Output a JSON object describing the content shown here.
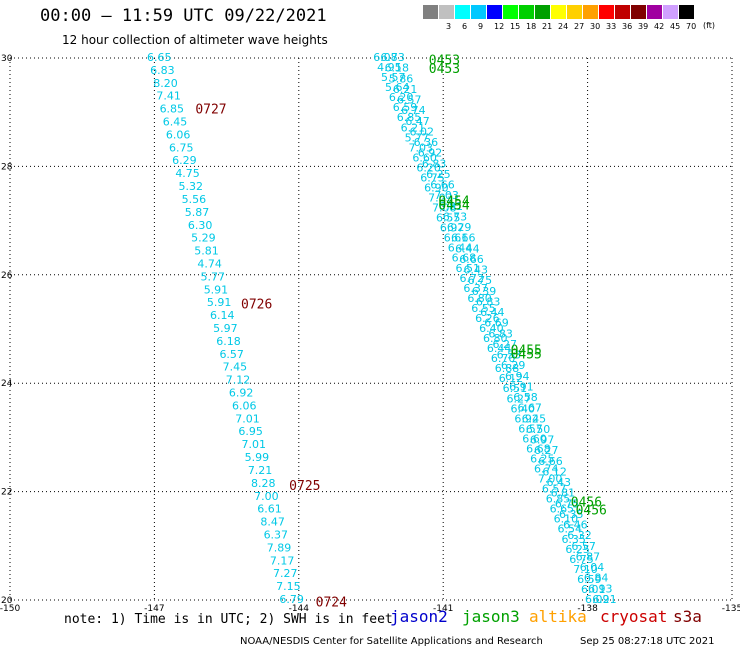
{
  "title": "00:00 – 11:59 UTC 09/22/2021",
  "subtitle": "12 hour collection of altimeter wave heights",
  "colorbar": {
    "unit": "(ft)",
    "stops": [
      {
        "label": "",
        "color": "#808080"
      },
      {
        "label": "3",
        "color": "#c0c0c0"
      },
      {
        "label": "6",
        "color": "#00ffff"
      },
      {
        "label": "9",
        "color": "#00c8ff"
      },
      {
        "label": "12",
        "color": "#0000ff"
      },
      {
        "label": "15",
        "color": "#00ff00"
      },
      {
        "label": "18",
        "color": "#00d000"
      },
      {
        "label": "21",
        "color": "#00a000"
      },
      {
        "label": "24",
        "color": "#ffff00"
      },
      {
        "label": "27",
        "color": "#ffd000"
      },
      {
        "label": "30",
        "color": "#ffa000"
      },
      {
        "label": "33",
        "color": "#ff0000"
      },
      {
        "label": "36",
        "color": "#c00000"
      },
      {
        "label": "39",
        "color": "#800000"
      },
      {
        "label": "42",
        "color": "#a000a0"
      },
      {
        "label": "45",
        "color": "#d0a0ff"
      },
      {
        "label": "70",
        "color": "#000000"
      }
    ]
  },
  "note": "note: 1) Time is in UTC; 2) SWH is in feet",
  "satellites": [
    {
      "name": "jason2",
      "color": "#0000cc"
    },
    {
      "name": "jason3",
      "color": "#00a000"
    },
    {
      "name": "altika",
      "color": "#ffa000"
    },
    {
      "name": "cryosat",
      "color": "#cc0000"
    },
    {
      "name": "s3a",
      "color": "#800000"
    }
  ],
  "credit": "NOAA/NESDIS Center for Satellite Applications and Research",
  "timestamp": "Sep 25 08:27:18 UTC 2021",
  "chart_data": {
    "type": "scatter",
    "xlim": [
      -150,
      -135
    ],
    "ylim": [
      20,
      30
    ],
    "x_ticks": [
      "-150",
      "-147",
      "-144",
      "-141",
      "-138",
      "-135"
    ],
    "y_ticks": [
      "20",
      "22",
      "24",
      "26",
      "28",
      "30"
    ],
    "grid": true,
    "series": [
      {
        "track": "west",
        "color": "#00c8e6",
        "lat_start": 30.0,
        "lat_end": 20.0,
        "lon_start": -146.9,
        "lon_end": -144.15,
        "values": [
          "6.65",
          "6.83",
          "8.20",
          "7.41",
          "6.85",
          "6.45",
          "6.06",
          "6.75",
          "6.29",
          "4.75",
          "5.32",
          "5.56",
          "5.87",
          "6.30",
          "5.29",
          "5.81",
          "4.74",
          "5.77",
          "5.91",
          "5.91",
          "6.14",
          "5.97",
          "6.18",
          "6.57",
          "7.45",
          "7.12",
          "6.92",
          "6.06",
          "7.01",
          "6.95",
          "7.01",
          "5.99",
          "7.21",
          "8.28",
          "7.00",
          "6.61",
          "8.47",
          "6.37",
          "7.89",
          "7.17",
          "7.27",
          "7.15",
          "6.79"
        ]
      },
      {
        "track": "east-a",
        "color": "#00c8e6",
        "lat_start": 30.0,
        "lat_end": 20.0,
        "lon_start": -142.2,
        "lon_end": -137.8,
        "values": [
          "6.08",
          "4.95",
          "5.57",
          "5.64",
          "6.20",
          "6.59",
          "6.85",
          "6.21",
          "5.77",
          "7.03",
          "6.60",
          "6.20",
          "6.75",
          "6.90",
          "7.03",
          "7.08",
          "6.55",
          "6.97",
          "6.61",
          "6.44",
          "6.68",
          "6.51",
          "6.72",
          "6.37",
          "6.80",
          "6.55",
          "6.26",
          "6.40",
          "6.80",
          "6.44",
          "6.70",
          "6.88",
          "6.12",
          "6.51",
          "6.27",
          "6.40",
          "6.92",
          "6.57",
          "6.60",
          "6.68",
          "6.25",
          "6.74",
          "7.00",
          "6.57",
          "6.85",
          "6.65",
          "6.10",
          "6.54",
          "6.35",
          "6.25",
          "6.75",
          "7.10",
          "6.59",
          "6.01",
          "6.09"
        ]
      },
      {
        "track": "east-b",
        "color": "#00c8e6",
        "lat_start": 30.0,
        "lat_end": 20.0,
        "lon_start": -142.05,
        "lon_end": -137.65,
        "values": [
          "6.73",
          "6.18",
          "5.86",
          "6.21",
          "6.57",
          "6.74",
          "6.47",
          "6.02",
          "6.36",
          "6.92",
          "6.83",
          "6.25",
          "6.66",
          "7.03",
          "6.81",
          "6.73",
          "6.29",
          "6.66",
          "6.44",
          "6.66",
          "6.43",
          "6.75",
          "6.39",
          "6.83",
          "6.44",
          "6.69",
          "6.83",
          "6.27",
          "6.53",
          "6.29",
          "6.94",
          "6.91",
          "6.58",
          "6.67",
          "6.45",
          "6.50",
          "6.97",
          "6.27",
          "6.66",
          "6.12",
          "6.43",
          "6.81",
          "6.75",
          "6.35",
          "6.46",
          "6.32",
          "6.57",
          "6.87",
          "6.04",
          "6.84",
          "6.93",
          "6.21"
        ]
      }
    ],
    "time_labels": [
      {
        "text": "0727",
        "color": "#800000",
        "lat": 29.05,
        "lon": -146.15
      },
      {
        "text": "0726",
        "color": "#800000",
        "lat": 25.45,
        "lon": -145.2
      },
      {
        "text": "0725",
        "color": "#800000",
        "lat": 22.1,
        "lon": -144.2
      },
      {
        "text": "0724",
        "color": "#800000",
        "lat": 19.95,
        "lon": -143.65
      },
      {
        "text": "0453",
        "color": "#00a000",
        "lat": 29.95,
        "lon": -141.3
      },
      {
        "text": "0453",
        "color": "#00a000",
        "lat": 29.8,
        "lon": -141.3
      },
      {
        "text": "0454",
        "color": "#00a000",
        "lat": 27.35,
        "lon": -141.1
      },
      {
        "text": "0454",
        "color": "#00a000",
        "lat": 27.28,
        "lon": -141.1
      },
      {
        "text": "0455",
        "color": "#00a000",
        "lat": 24.6,
        "lon": -139.6
      },
      {
        "text": "0455",
        "color": "#00a000",
        "lat": 24.53,
        "lon": -139.6
      },
      {
        "text": "0456",
        "color": "#00a000",
        "lat": 21.8,
        "lon": -138.35
      },
      {
        "text": "0456",
        "color": "#00a000",
        "lat": 21.65,
        "lon": -138.25
      }
    ]
  }
}
